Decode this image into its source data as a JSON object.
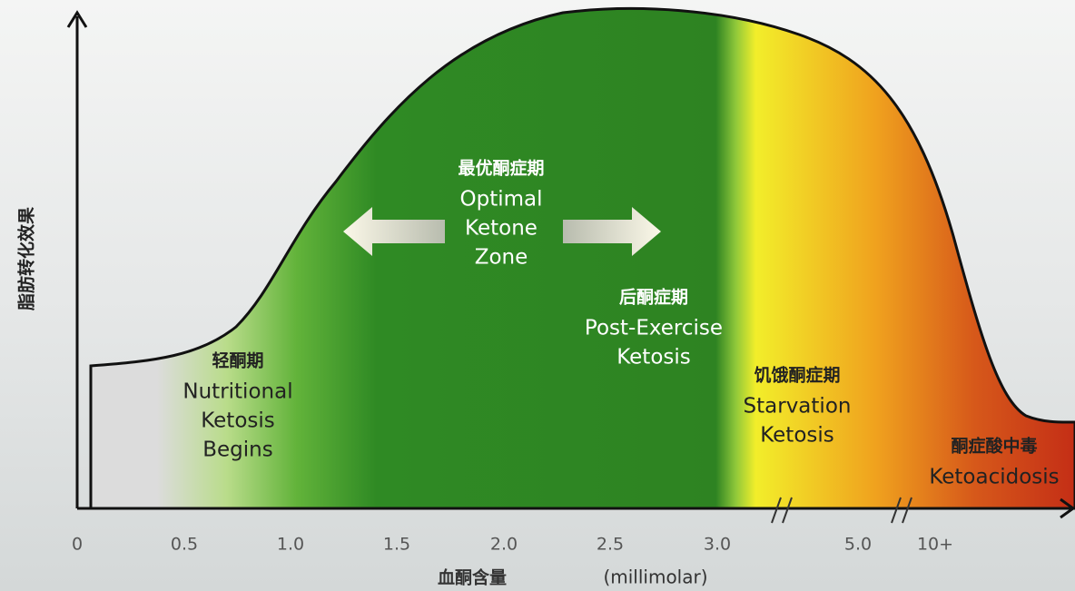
{
  "y_axis_label": "脂肪转化效果",
  "x_axis": {
    "label": "血酮含量",
    "unit": "(millimolar)",
    "ticks": [
      "0",
      "0.5",
      "1.0",
      "1.5",
      "2.0",
      "2.5",
      "3.0",
      "5.0",
      "10+"
    ]
  },
  "zones": [
    {
      "title": "轻酮期",
      "lines": [
        "Nutritional",
        "Ketosis",
        "Begins"
      ]
    },
    {
      "title": "最优酮症期",
      "lines": [
        "Optimal",
        "Ketone",
        "Zone"
      ]
    },
    {
      "title": "后酮症期",
      "lines": [
        "Post-Exercise",
        "Ketosis"
      ]
    },
    {
      "title": "饥饿酮症期",
      "lines": [
        "Starvation",
        "Ketosis"
      ]
    },
    {
      "title": "酮症酸中毒",
      "lines": [
        "Ketoacidosis"
      ]
    }
  ]
}
